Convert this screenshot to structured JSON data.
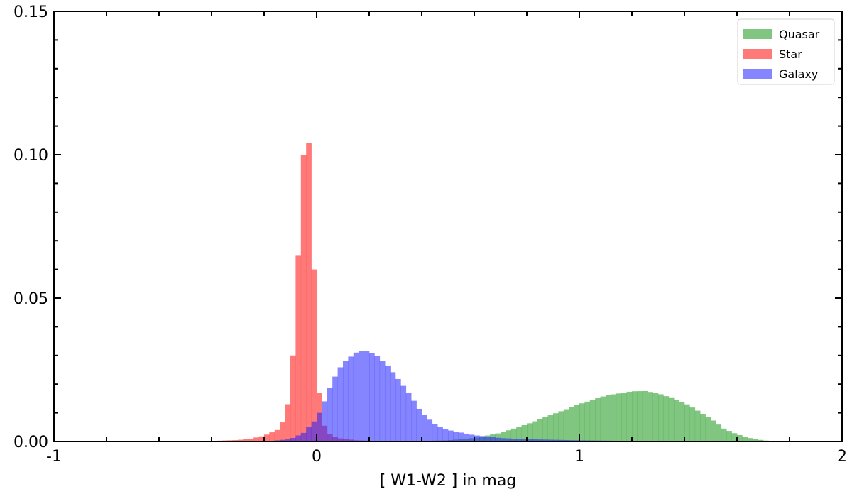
{
  "chart_data": {
    "type": "histogram",
    "xlabel": "[ W1-W2 ] in mag",
    "ylabel": "",
    "xlim": [
      -1,
      2
    ],
    "ylim": [
      0,
      0.15
    ],
    "x_ticks": [
      "-1",
      "0",
      "1",
      "2"
    ],
    "y_ticks": [
      "0.00",
      "0.05",
      "0.10",
      "0.15"
    ],
    "legend": {
      "placement": "top-right"
    },
    "grid": false,
    "bin_width": 0.02,
    "series": [
      {
        "name": "Quasar",
        "color": "#2ca02c",
        "alpha": 0.6,
        "points": [
          [
            0.3,
            0.0
          ],
          [
            0.5,
            0.0004
          ],
          [
            0.6,
            0.0012
          ],
          [
            0.7,
            0.003
          ],
          [
            0.8,
            0.006
          ],
          [
            0.9,
            0.0095
          ],
          [
            1.0,
            0.013
          ],
          [
            1.1,
            0.016
          ],
          [
            1.2,
            0.0175
          ],
          [
            1.25,
            0.0176
          ],
          [
            1.3,
            0.0168
          ],
          [
            1.4,
            0.0135
          ],
          [
            1.5,
            0.008
          ],
          [
            1.55,
            0.0045
          ],
          [
            1.6,
            0.0025
          ],
          [
            1.65,
            0.0012
          ],
          [
            1.7,
            0.0004
          ],
          [
            1.75,
            0.0
          ]
        ]
      },
      {
        "name": "Star",
        "color": "#ff4040",
        "alpha": 0.7,
        "points": [
          [
            -0.6,
            0.0
          ],
          [
            -0.4,
            0.0002
          ],
          [
            -0.3,
            0.0005
          ],
          [
            -0.25,
            0.001
          ],
          [
            -0.2,
            0.002
          ],
          [
            -0.15,
            0.004
          ],
          [
            -0.12,
            0.008
          ],
          [
            -0.1,
            0.018
          ],
          [
            -0.09,
            0.03
          ],
          [
            -0.08,
            0.045
          ],
          [
            -0.07,
            0.065
          ],
          [
            -0.06,
            0.085
          ],
          [
            -0.05,
            0.1
          ],
          [
            -0.04,
            0.113
          ],
          [
            -0.03,
            0.104
          ],
          [
            -0.02,
            0.085
          ],
          [
            -0.01,
            0.06
          ],
          [
            0.0,
            0.038
          ],
          [
            0.01,
            0.017
          ],
          [
            0.02,
            0.008
          ],
          [
            0.04,
            0.003
          ],
          [
            0.08,
            0.0012
          ],
          [
            0.15,
            0.0004
          ],
          [
            0.3,
            0.0
          ]
        ]
      },
      {
        "name": "Galaxy",
        "color": "#2020ff",
        "alpha": 0.55,
        "points": [
          [
            -0.2,
            0.0
          ],
          [
            -0.1,
            0.0008
          ],
          [
            -0.05,
            0.003
          ],
          [
            0.0,
            0.008
          ],
          [
            0.03,
            0.014
          ],
          [
            0.06,
            0.021
          ],
          [
            0.1,
            0.0275
          ],
          [
            0.15,
            0.031
          ],
          [
            0.18,
            0.032
          ],
          [
            0.22,
            0.0305
          ],
          [
            0.27,
            0.0265
          ],
          [
            0.3,
            0.023
          ],
          [
            0.35,
            0.017
          ],
          [
            0.4,
            0.01
          ],
          [
            0.45,
            0.006
          ],
          [
            0.5,
            0.004
          ],
          [
            0.6,
            0.0022
          ],
          [
            0.7,
            0.0012
          ],
          [
            0.8,
            0.0008
          ],
          [
            1.0,
            0.0004
          ],
          [
            1.2,
            0.0002
          ],
          [
            1.5,
            0.0001
          ],
          [
            1.7,
            0.0
          ]
        ]
      }
    ]
  }
}
